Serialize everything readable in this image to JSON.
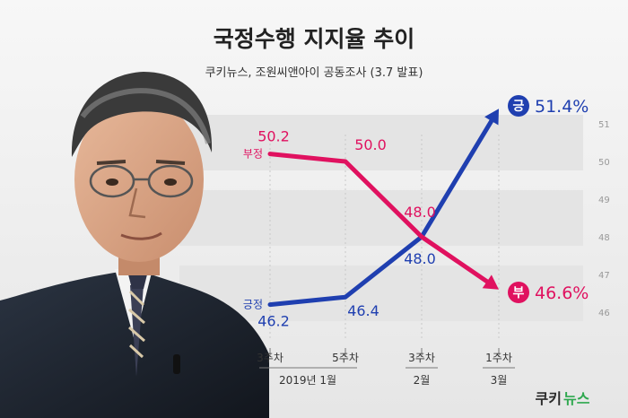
{
  "chart_data": {
    "type": "line",
    "title": "국정수행 지지율 추이",
    "subtitle": "쿠키뉴스, 조원씨앤아이 공동조사 (3.7 발표)",
    "x_ticks": [
      "3주차",
      "5주차",
      "3주차",
      "1주차"
    ],
    "x_groups": [
      "2019년 1월",
      "2월",
      "3월"
    ],
    "ylim": [
      46,
      51
    ],
    "y_ticks": [
      "51",
      "50",
      "49",
      "48",
      "47",
      "46"
    ],
    "grid": true,
    "series": [
      {
        "name": "긍정",
        "color": "#1f3fb0",
        "values": [
          46.2,
          46.4,
          48.0,
          51.4
        ],
        "labels": [
          "46.2",
          "46.4",
          "48.0",
          "51.4%"
        ]
      },
      {
        "name": "부정",
        "color": "#e0115f",
        "values": [
          50.2,
          50.0,
          48.0,
          46.6
        ],
        "labels": [
          "50.2",
          "50.0",
          "48.0",
          "46.6%"
        ]
      }
    ],
    "end_badges": [
      "긍",
      "부"
    ]
  },
  "brand": {
    "logo_left": "쿠키",
    "logo_right": "뉴스",
    "logo_color_left": "#2a2a2a",
    "logo_color_right": "#2fa84f"
  }
}
